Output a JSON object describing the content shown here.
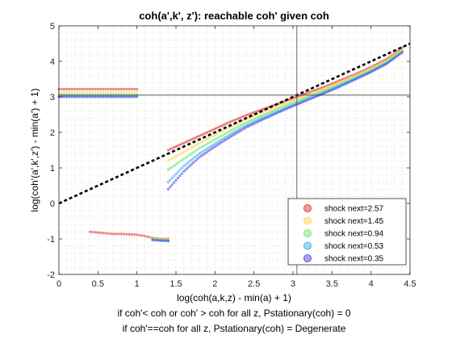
{
  "chart_data": {
    "type": "scatter",
    "title": "coh(a',k', z'): reachable coh' given coh",
    "xlabel": "log(coh(a,k,z) - min(a) + 1)",
    "ylabel": "log(coh'(a',k',z') - min(a') + 1)",
    "xlim": [
      0,
      4.5
    ],
    "ylim": [
      -2,
      5
    ],
    "x_ticks": [
      "0",
      "0.5",
      "1",
      "1.5",
      "2",
      "2.5",
      "3",
      "3.5",
      "4",
      "4.5"
    ],
    "y_ticks": [
      "-2",
      "-1",
      "0",
      "1",
      "2",
      "3",
      "4",
      "5"
    ],
    "grid": "minor-dotted",
    "legend_position": "bottom-right",
    "reference_line": {
      "style": "black-dashed",
      "x": [
        0,
        4.5
      ],
      "y": [
        0,
        4.5
      ]
    },
    "crosshair": {
      "x": 3.05,
      "y": 3.05
    },
    "series": [
      {
        "name": "shock next=2.57",
        "color": "#e52222",
        "segments": [
          {
            "x": [
              0,
              0.1,
              0.2,
              0.3,
              0.4,
              0.5,
              0.6,
              0.7,
              0.8,
              0.9,
              1.0
            ],
            "y": [
              3.22,
              3.22,
              3.22,
              3.22,
              3.22,
              3.22,
              3.22,
              3.22,
              3.22,
              3.22,
              3.22
            ]
          },
          {
            "x": [
              1.4,
              1.6,
              1.8,
              2.0,
              2.2,
              2.4,
              2.6,
              2.8,
              3.0,
              3.2,
              3.4,
              3.6,
              3.8,
              4.0,
              4.2,
              4.4
            ],
            "y": [
              1.5,
              1.7,
              1.9,
              2.1,
              2.3,
              2.48,
              2.64,
              2.8,
              2.96,
              3.12,
              3.28,
              3.46,
              3.64,
              3.84,
              4.06,
              4.38
            ]
          },
          {
            "x": [
              0.4,
              0.5,
              0.6,
              0.7,
              0.8,
              0.9,
              1.0,
              1.1,
              1.2,
              1.3,
              1.4
            ],
            "y": [
              -0.8,
              -0.82,
              -0.84,
              -0.86,
              -0.86,
              -0.87,
              -0.88,
              -0.92,
              -0.97,
              -1.0,
              -1.0
            ]
          }
        ]
      },
      {
        "name": "shock next=1.45",
        "color": "#ffd54a",
        "segments": [
          {
            "x": [
              0,
              0.1,
              0.2,
              0.3,
              0.4,
              0.5,
              0.6,
              0.7,
              0.8,
              0.9,
              1.0
            ],
            "y": [
              3.14,
              3.14,
              3.14,
              3.14,
              3.14,
              3.14,
              3.14,
              3.14,
              3.14,
              3.14,
              3.14
            ]
          },
          {
            "x": [
              1.4,
              1.6,
              1.8,
              2.0,
              2.2,
              2.4,
              2.6,
              2.8,
              3.0,
              3.2,
              3.4,
              3.6,
              3.8,
              4.0,
              4.2,
              4.4
            ],
            "y": [
              1.2,
              1.45,
              1.7,
              1.93,
              2.16,
              2.38,
              2.56,
              2.73,
              2.9,
              3.06,
              3.23,
              3.41,
              3.6,
              3.8,
              4.02,
              4.34
            ]
          },
          {
            "x": [
              1.2,
              1.3,
              1.4
            ],
            "y": [
              -0.99,
              -1.01,
              -1.02
            ]
          }
        ]
      },
      {
        "name": "shock next=0.94",
        "color": "#5ee85e",
        "segments": [
          {
            "x": [
              0,
              0.1,
              0.2,
              0.3,
              0.4,
              0.5,
              0.6,
              0.7,
              0.8,
              0.9,
              1.0
            ],
            "y": [
              3.07,
              3.07,
              3.07,
              3.07,
              3.07,
              3.07,
              3.07,
              3.07,
              3.07,
              3.07,
              3.07
            ]
          },
          {
            "x": [
              1.4,
              1.6,
              1.8,
              2.0,
              2.2,
              2.4,
              2.6,
              2.8,
              3.0,
              3.2,
              3.4,
              3.6,
              3.8,
              4.0,
              4.2,
              4.4
            ],
            "y": [
              0.95,
              1.25,
              1.55,
              1.8,
              2.05,
              2.28,
              2.47,
              2.66,
              2.84,
              3.01,
              3.18,
              3.36,
              3.56,
              3.76,
              3.98,
              4.3
            ]
          },
          {
            "x": [
              1.2,
              1.3,
              1.4
            ],
            "y": [
              -1.01,
              -1.03,
              -1.04
            ]
          }
        ]
      },
      {
        "name": "shock next=0.53",
        "color": "#2aa7ef",
        "segments": [
          {
            "x": [
              0,
              0.1,
              0.2,
              0.3,
              0.4,
              0.5,
              0.6,
              0.7,
              0.8,
              0.9,
              1.0
            ],
            "y": [
              3.02,
              3.02,
              3.02,
              3.02,
              3.02,
              3.02,
              3.02,
              3.02,
              3.02,
              3.02,
              3.02
            ]
          },
          {
            "x": [
              1.4,
              1.6,
              1.8,
              2.0,
              2.2,
              2.4,
              2.6,
              2.8,
              3.0,
              3.2,
              3.4,
              3.6,
              3.8,
              4.0,
              4.2,
              4.4
            ],
            "y": [
              0.6,
              1.05,
              1.4,
              1.68,
              1.95,
              2.2,
              2.4,
              2.59,
              2.78,
              2.96,
              3.13,
              3.32,
              3.52,
              3.72,
              3.95,
              4.27
            ]
          },
          {
            "x": [
              1.2,
              1.3,
              1.4
            ],
            "y": [
              -1.02,
              -1.04,
              -1.05
            ]
          }
        ]
      },
      {
        "name": "shock next=0.35",
        "color": "#3a3ad6",
        "segments": [
          {
            "x": [
              0,
              0.1,
              0.2,
              0.3,
              0.4,
              0.5,
              0.6,
              0.7,
              0.8,
              0.9,
              1.0
            ],
            "y": [
              3.0,
              3.0,
              3.0,
              3.0,
              3.0,
              3.0,
              3.0,
              3.0,
              3.0,
              3.0,
              3.0
            ]
          },
          {
            "x": [
              1.4,
              1.6,
              1.8,
              2.0,
              2.2,
              2.4,
              2.6,
              2.8,
              3.0,
              3.2,
              3.4,
              3.6,
              3.8,
              4.0,
              4.2,
              4.4
            ],
            "y": [
              0.4,
              0.9,
              1.3,
              1.6,
              1.88,
              2.14,
              2.35,
              2.55,
              2.74,
              2.92,
              3.1,
              3.29,
              3.49,
              3.7,
              3.93,
              4.25
            ]
          },
          {
            "x": [
              1.2,
              1.3,
              1.4
            ],
            "y": [
              -1.03,
              -1.05,
              -1.06
            ]
          }
        ]
      }
    ]
  },
  "notes": [
    "if coh'< coh or coh' > coh for all z, Pstationary(coh) = 0",
    "if coh'==coh for all z, Pstationary(coh) = Degenerate"
  ]
}
